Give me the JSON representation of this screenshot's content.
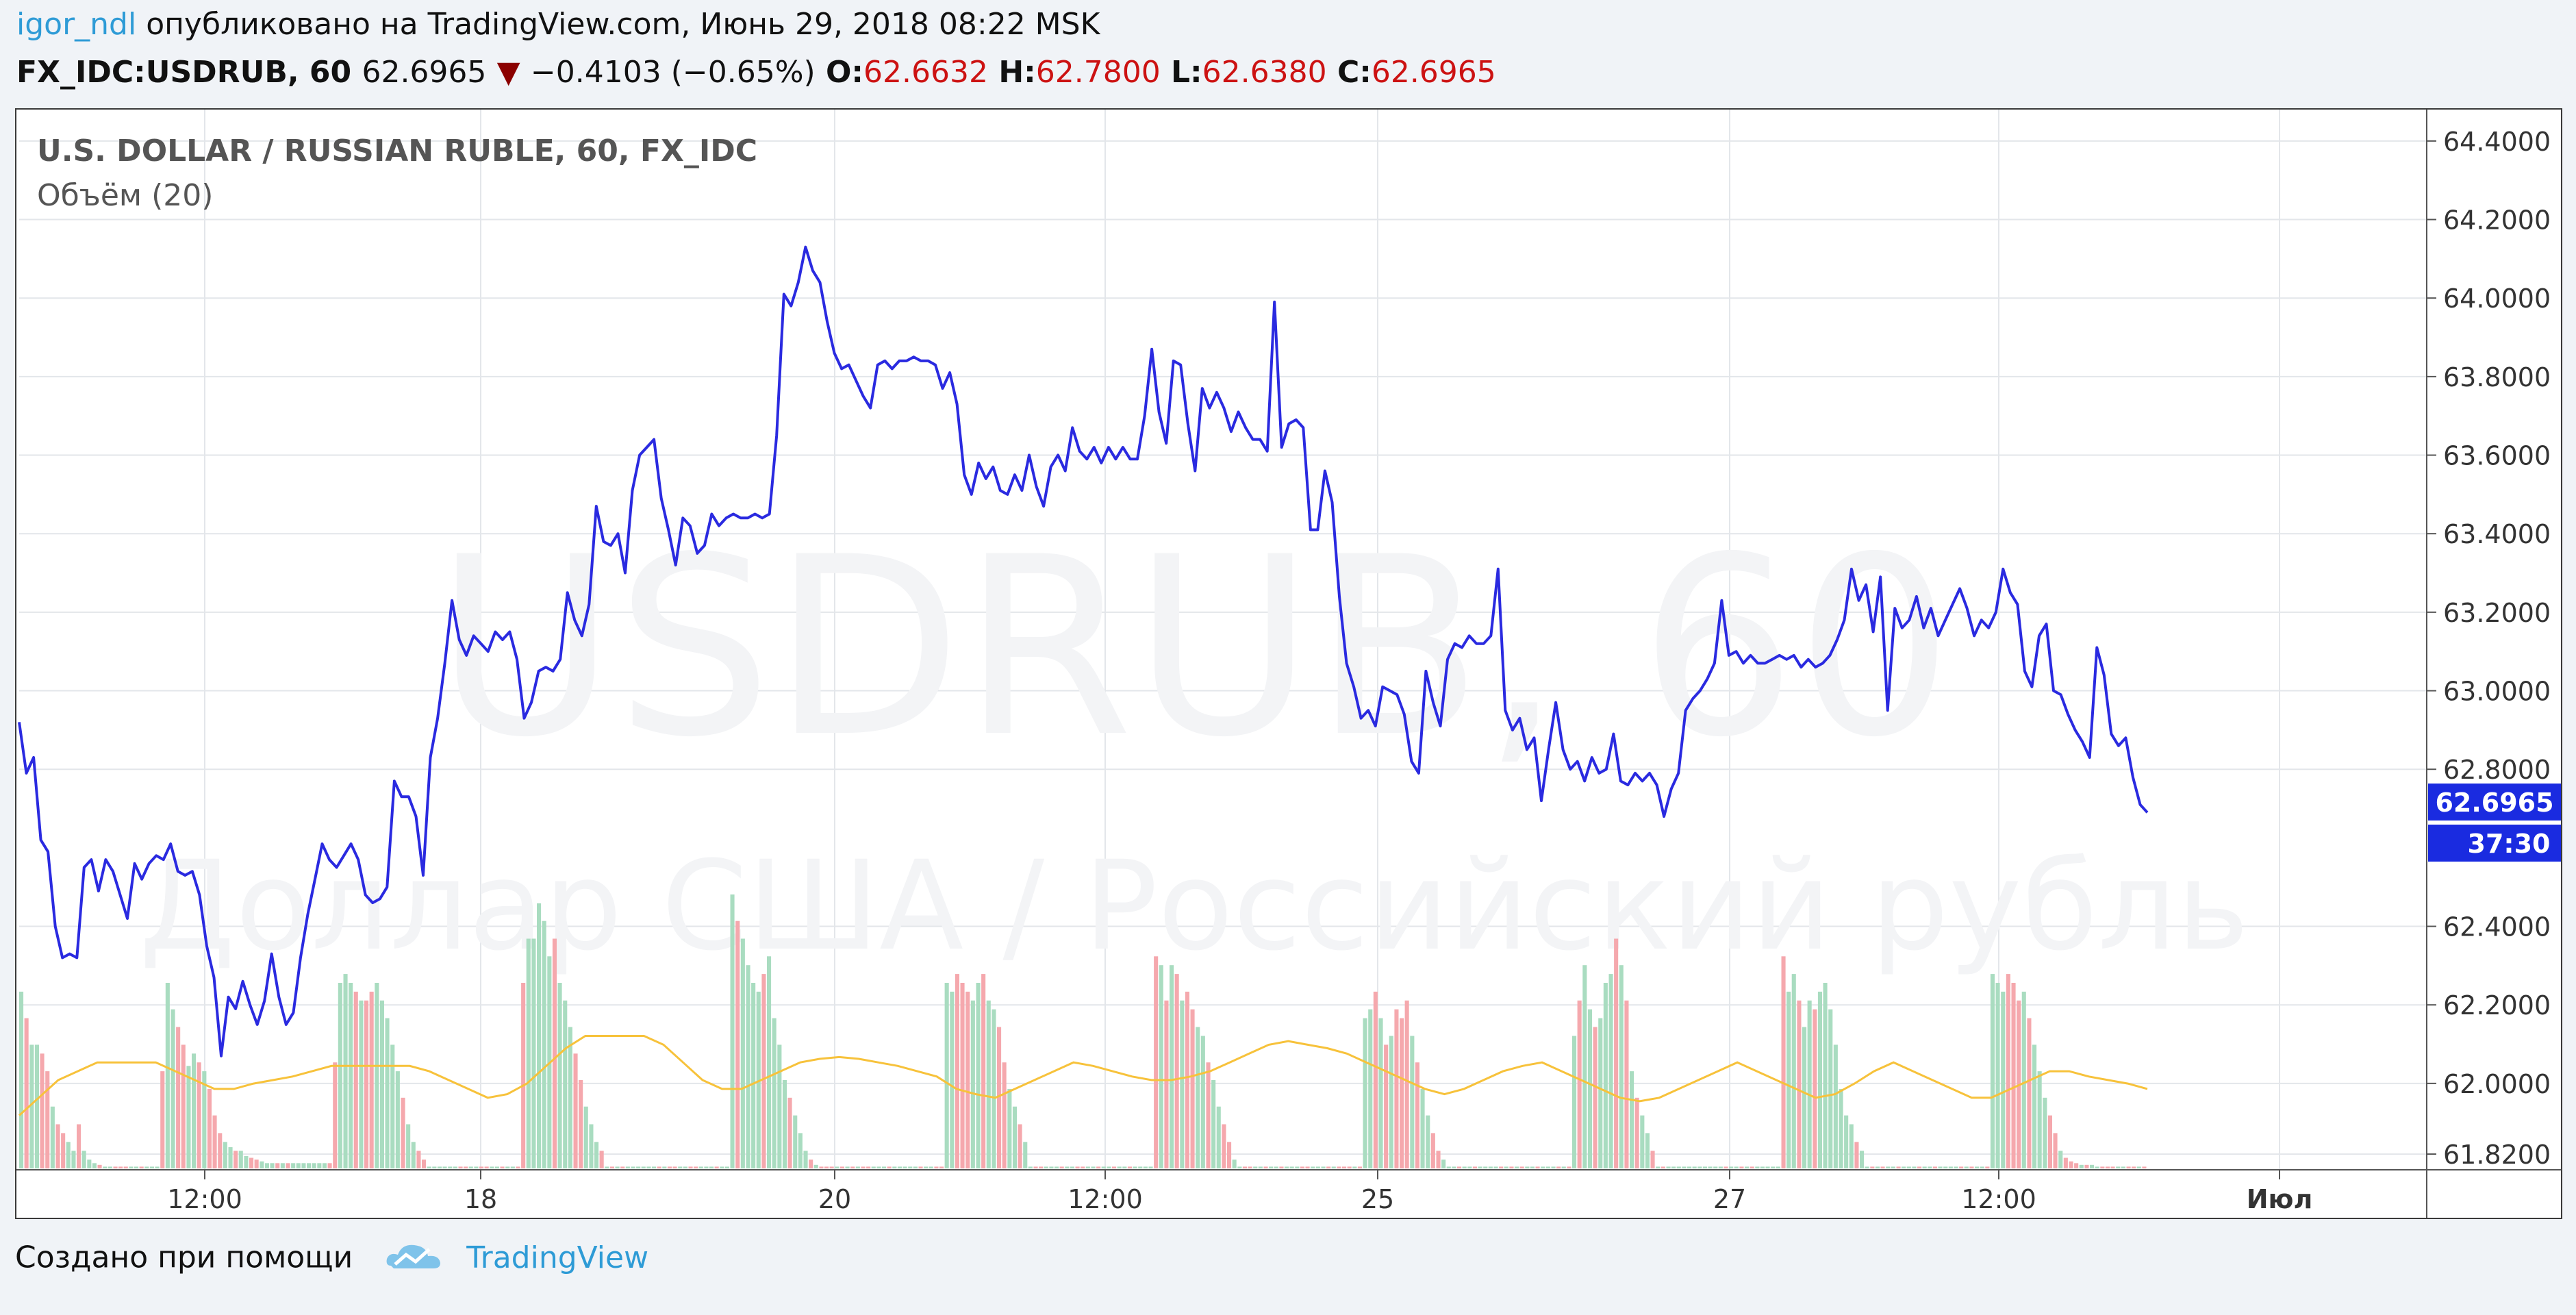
{
  "header": {
    "author": "igor_ndl",
    "published_text": "опубликовано на TradingView.com, Июнь 29, 2018 08:22 MSK",
    "symbol": "FX_IDC:USDRUB, 60",
    "last_price": "62.6965",
    "change": "−0.4103 (−0.65%)",
    "open_label": "O:",
    "open_value": "62.6632",
    "high_label": "H:",
    "high_value": "62.7800",
    "low_label": "L:",
    "low_value": "62.6380",
    "close_label": "C:",
    "close_value": "62.6965",
    "arrow_icon": "down-triangle-icon"
  },
  "footer": {
    "created_with": "Создано при помощи",
    "brand": "TradingView",
    "logo_icon": "tradingview-cloud-icon"
  },
  "colors": {
    "price_line": "#2a2ae0",
    "volume_up": "#a9dcc0",
    "volume_down": "#f5a8ad",
    "volume_ma": "#f7c23b",
    "label_bg": "#1a2be0",
    "grid": "#e3e6ea"
  },
  "chart_data": {
    "type": "line",
    "title": "U.S. DOLLAR / RUSSIAN RUBLE, 60, FX_IDC",
    "indicator_label": "Объём (20)",
    "watermark_title": "USDRUB, 60",
    "watermark_subtitle": "Доллар США / Российский рубль",
    "ylim": [
      61.78,
      64.48
    ],
    "y_ticks": [
      "64.4000",
      "64.2000",
      "64.0000",
      "63.8000",
      "63.6000",
      "63.4000",
      "63.2000",
      "63.0000",
      "62.8000",
      "62.4000",
      "62.2000",
      "62.0000",
      "61.8200"
    ],
    "y_tick_values": [
      64.4,
      64.2,
      64.0,
      63.8,
      63.6,
      63.4,
      63.2,
      63.0,
      62.8,
      62.4,
      62.2,
      62.0,
      61.82
    ],
    "x_ticks": [
      "12:00",
      "18",
      "20",
      "12:00",
      "25",
      "27",
      "12:00",
      "Июл"
    ],
    "price_label": "62.6965",
    "countdown_label": "37:30",
    "series": [
      {
        "values": [
          62.92,
          62.79,
          62.83,
          62.62,
          62.59,
          62.4,
          62.32,
          62.33,
          62.32,
          62.55,
          62.57,
          62.49,
          62.57,
          62.54,
          62.48,
          62.42,
          62.56,
          62.52,
          62.56,
          62.58,
          62.57,
          62.61,
          62.54,
          62.53,
          62.54,
          62.48,
          62.35,
          62.27,
          62.07,
          62.22,
          62.19,
          62.26,
          62.2,
          62.15,
          62.21,
          62.33,
          62.22,
          62.15,
          62.18,
          62.32,
          62.43,
          62.52,
          62.61,
          62.57,
          62.55,
          62.58,
          62.61,
          62.57,
          62.48,
          62.46,
          62.47,
          62.5,
          62.77,
          62.73,
          62.73,
          62.68,
          62.53,
          62.83,
          62.93,
          63.07,
          63.23,
          63.13,
          63.09,
          63.14,
          63.12,
          63.1,
          63.15,
          63.13,
          63.15,
          63.08,
          62.93,
          62.97,
          63.05,
          63.06,
          63.05,
          63.08,
          63.25,
          63.18,
          63.14,
          63.22,
          63.47,
          63.38,
          63.37,
          63.4,
          63.3,
          63.51,
          63.6,
          63.62,
          63.64,
          63.49,
          63.41,
          63.32,
          63.44,
          63.42,
          63.35,
          63.37,
          63.45,
          63.42,
          63.44,
          63.45,
          63.44,
          63.44,
          63.45,
          63.44,
          63.45,
          63.65,
          64.01,
          63.98,
          64.04,
          64.13,
          64.07,
          64.04,
          63.94,
          63.86,
          63.82,
          63.83,
          63.79,
          63.75,
          63.72,
          63.83,
          63.84,
          63.82,
          63.84,
          63.84,
          63.85,
          63.84,
          63.84,
          63.83,
          63.77,
          63.81,
          63.73,
          63.55,
          63.5,
          63.58,
          63.54,
          63.57,
          63.51,
          63.5,
          63.55,
          63.51,
          63.6,
          63.52,
          63.47,
          63.57,
          63.6,
          63.56,
          63.67,
          63.61,
          63.59,
          63.62,
          63.58,
          63.62,
          63.59,
          63.62,
          63.59,
          63.59,
          63.7,
          63.87,
          63.71,
          63.63,
          63.84,
          63.83,
          63.68,
          63.56,
          63.77,
          63.72,
          63.76,
          63.72,
          63.66,
          63.71,
          63.67,
          63.64,
          63.64,
          63.61,
          63.99,
          63.62,
          63.68,
          63.69,
          63.67,
          63.41,
          63.41,
          63.56,
          63.48,
          63.24,
          63.07,
          63.01,
          62.93,
          62.95,
          62.91,
          63.01,
          63.0,
          62.99,
          62.94,
          62.82,
          62.79,
          63.05,
          62.97,
          62.91,
          63.08,
          63.12,
          63.11,
          63.14,
          63.12,
          63.12,
          63.14,
          63.31,
          62.95,
          62.9,
          62.93,
          62.85,
          62.88,
          62.72,
          62.85,
          62.97,
          62.85,
          62.8,
          62.82,
          62.77,
          62.83,
          62.79,
          62.8,
          62.89,
          62.77,
          62.76,
          62.79,
          62.77,
          62.79,
          62.76,
          62.68,
          62.75,
          62.79,
          62.95,
          62.98,
          63.0,
          63.03,
          63.07,
          63.23,
          63.09,
          63.1,
          63.07,
          63.09,
          63.07,
          63.07,
          63.08,
          63.09,
          63.08,
          63.09,
          63.06,
          63.08,
          63.06,
          63.07,
          63.09,
          63.13,
          63.18,
          63.31,
          63.23,
          63.27,
          63.15,
          63.29,
          62.95,
          63.21,
          63.16,
          63.18,
          63.24,
          63.16,
          63.21,
          63.14,
          63.18,
          63.22,
          63.26,
          63.21,
          63.14,
          63.18,
          63.16,
          63.2,
          63.31,
          63.25,
          63.22,
          63.05,
          63.01,
          63.14,
          63.17,
          63.0,
          62.99,
          62.94,
          62.9,
          62.87,
          62.83,
          63.11,
          63.04,
          62.89,
          62.86,
          62.88,
          62.78,
          62.71,
          62.69
        ]
      }
    ],
    "volume": {
      "values": [
        100,
        85,
        70,
        70,
        65,
        55,
        35,
        25,
        20,
        15,
        10,
        25,
        10,
        5,
        3,
        2,
        1,
        1,
        1,
        1,
        1,
        1,
        1,
        1,
        1,
        1,
        1,
        55,
        105,
        90,
        80,
        70,
        58,
        65,
        60,
        55,
        45,
        30,
        20,
        15,
        12,
        10,
        10,
        7,
        6,
        5,
        4,
        3,
        3,
        3,
        3,
        3,
        3,
        3,
        3,
        3,
        3,
        3,
        3,
        3,
        60,
        105,
        110,
        105,
        100,
        95,
        95,
        100,
        105,
        95,
        85,
        70,
        55,
        40,
        25,
        15,
        10,
        5,
        1,
        1,
        1,
        1,
        1,
        1,
        1,
        1,
        1,
        1,
        1,
        1,
        1,
        1,
        1,
        1,
        1,
        1,
        105,
        130,
        130,
        150,
        140,
        120,
        130,
        105,
        95,
        80,
        65,
        50,
        35,
        25,
        15,
        10,
        1,
        1,
        1,
        1,
        1,
        1,
        1,
        1,
        1,
        1,
        1,
        1,
        1,
        1,
        1,
        1,
        1,
        1,
        1,
        1,
        1,
        1,
        1,
        1,
        155,
        140,
        130,
        115,
        105,
        100,
        110,
        120,
        85,
        70,
        50,
        40,
        30,
        20,
        10,
        5,
        2,
        1,
        1,
        1,
        1,
        1,
        1,
        1,
        1,
        1,
        1,
        1,
        1,
        1,
        1,
        1,
        1,
        1,
        1,
        1,
        1,
        1,
        1,
        1,
        1,
        105,
        100,
        110,
        105,
        100,
        95,
        105,
        110,
        95,
        90,
        80,
        60,
        45,
        35,
        25,
        15,
        1,
        1,
        1,
        1,
        1,
        1,
        1,
        1,
        1,
        1,
        1,
        1,
        1,
        1,
        1,
        1,
        1,
        1,
        1,
        1,
        1,
        1,
        1,
        1,
        120,
        115,
        95,
        115,
        110,
        95,
        100,
        90,
        80,
        75,
        60,
        50,
        35,
        25,
        15,
        5,
        1,
        1,
        1,
        1,
        1,
        1,
        1,
        1,
        1,
        1,
        1,
        1,
        1,
        1,
        1,
        1,
        1,
        1,
        1,
        1,
        1,
        1,
        1,
        1,
        85,
        90,
        100,
        85,
        70,
        75,
        90,
        85,
        95,
        75,
        60,
        45,
        30,
        20,
        10,
        5,
        1,
        1,
        1,
        1,
        1,
        1,
        1,
        1,
        1,
        1,
        1,
        1,
        1,
        1,
        1,
        1,
        1,
        1,
        1,
        1,
        1,
        1,
        1,
        1,
        75,
        95,
        115,
        90,
        80,
        85,
        105,
        110,
        130,
        115,
        95,
        55,
        40,
        30,
        20,
        10,
        1,
        1,
        1,
        1,
        1,
        1,
        1,
        1,
        1,
        1,
        1,
        1,
        1,
        1,
        1,
        1,
        1,
        1,
        1,
        1,
        1,
        1,
        1,
        1,
        120,
        100,
        110,
        95,
        80,
        95,
        90,
        100,
        105,
        90,
        70,
        45,
        30,
        25,
        15,
        10,
        1,
        1,
        1,
        1,
        1,
        1,
        1,
        1,
        1,
        1,
        1,
        1,
        1,
        1,
        1,
        1,
        1,
        1,
        1,
        1,
        1,
        1,
        1,
        1,
        110,
        105,
        100,
        110,
        105,
        95,
        100,
        85,
        70,
        55,
        40,
        30,
        20,
        10,
        6,
        4,
        3,
        2,
        2,
        2,
        1,
        1,
        1,
        1,
        1,
        1,
        1,
        1,
        1,
        1
      ],
      "ma": [
        30,
        40,
        50,
        55,
        60,
        60,
        60,
        60,
        55,
        50,
        45,
        45,
        48,
        50,
        52,
        55,
        58,
        58,
        58,
        58,
        58,
        55,
        50,
        45,
        40,
        42,
        48,
        58,
        68,
        75,
        75,
        75,
        75,
        70,
        60,
        50,
        45,
        45,
        50,
        55,
        60,
        62,
        63,
        62,
        60,
        58,
        55,
        52,
        45,
        42,
        40,
        45,
        50,
        55,
        60,
        58,
        55,
        52,
        50,
        50,
        52,
        55,
        60,
        65,
        70,
        72,
        70,
        68,
        65,
        60,
        55,
        50,
        45,
        42,
        45,
        50,
        55,
        58,
        60,
        55,
        50,
        45,
        40,
        38,
        40,
        45,
        50,
        55,
        60,
        55,
        50,
        45,
        40,
        42,
        48,
        55,
        60,
        55,
        50,
        45,
        40,
        40,
        45,
        50,
        55,
        55,
        52,
        50,
        48,
        45
      ]
    }
  }
}
